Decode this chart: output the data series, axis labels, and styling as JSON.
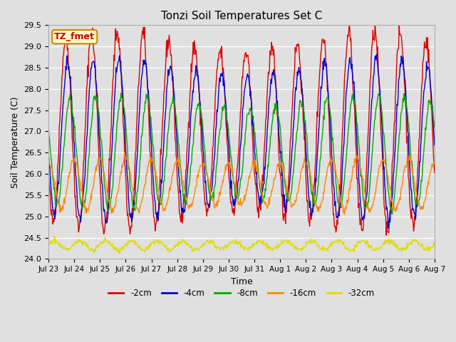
{
  "title": "Tonzi Soil Temperatures Set C",
  "xlabel": "Time",
  "ylabel": "Soil Temperature (C)",
  "ylim": [
    24.0,
    29.5
  ],
  "annotation_text": "TZ_fmet",
  "annotation_bg": "#ffffcc",
  "annotation_border": "#cc8800",
  "background_color": "#e0e0e0",
  "series": [
    {
      "label": "-2cm",
      "color": "#dd0000",
      "amplitude": 2.1,
      "base": 27.0,
      "phase": 0.0,
      "noise": 0.12
    },
    {
      "label": "-4cm",
      "color": "#0000cc",
      "amplitude": 1.7,
      "base": 26.8,
      "phase": 0.06,
      "noise": 0.08
    },
    {
      "label": "-8cm",
      "color": "#00aa00",
      "amplitude": 1.2,
      "base": 26.5,
      "phase": 0.16,
      "noise": 0.06
    },
    {
      "label": "-16cm",
      "color": "#ff8800",
      "amplitude": 0.55,
      "base": 25.75,
      "phase": 0.32,
      "noise": 0.05
    },
    {
      "label": "-32cm",
      "color": "#dddd00",
      "amplitude": 0.1,
      "base": 24.32,
      "phase": 0.55,
      "noise": 0.03
    }
  ],
  "xtick_labels": [
    "Jul 23",
    "Jul 24",
    "Jul 25",
    "Jul 26",
    "Jul 27",
    "Jul 28",
    "Jul 29",
    "Jul 30",
    "Jul 31",
    "Aug 1",
    "Aug 2",
    "Aug 3",
    "Aug 4",
    "Aug 5",
    "Aug 6",
    "Aug 7"
  ],
  "xtick_positions": [
    0,
    1,
    2,
    3,
    4,
    5,
    6,
    7,
    8,
    9,
    10,
    11,
    12,
    13,
    14,
    15
  ],
  "yticks": [
    24.0,
    24.5,
    25.0,
    25.5,
    26.0,
    26.5,
    27.0,
    27.5,
    28.0,
    28.5,
    29.0,
    29.5
  ]
}
